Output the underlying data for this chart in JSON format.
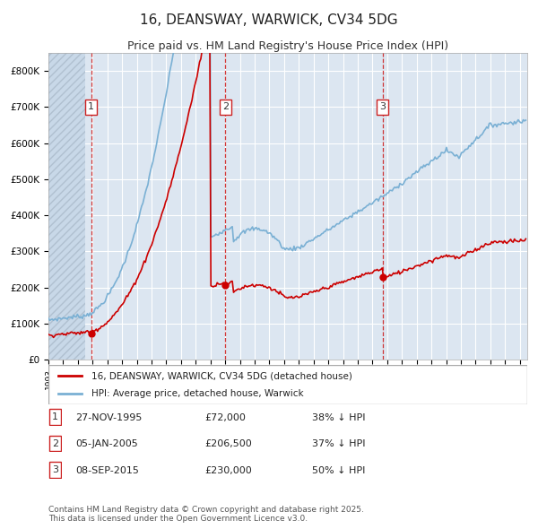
{
  "title": "16, DEANSWAY, WARWICK, CV34 5DG",
  "subtitle": "Price paid vs. HM Land Registry's House Price Index (HPI)",
  "ylabel": "",
  "background_color": "#dce6f1",
  "plot_bg_color": "#dce6f1",
  "hatch_color": "#c0cfe0",
  "grid_color": "#ffffff",
  "hpi_color": "#7ab0d4",
  "price_color": "#cc0000",
  "marker_color": "#cc0000",
  "vline_color": "#cc2222",
  "purchases": [
    {
      "date_num": 1995.9,
      "price": 72000,
      "label": "1"
    },
    {
      "date_num": 2005.02,
      "price": 206500,
      "label": "2"
    },
    {
      "date_num": 2015.68,
      "price": 230000,
      "label": "3"
    }
  ],
  "legend_label_price": "16, DEANSWAY, WARWICK, CV34 5DG (detached house)",
  "legend_label_hpi": "HPI: Average price, detached house, Warwick",
  "table_rows": [
    {
      "num": "1",
      "date": "27-NOV-1995",
      "price": "£72,000",
      "pct": "38% ↓ HPI"
    },
    {
      "num": "2",
      "date": "05-JAN-2005",
      "price": "£206,500",
      "pct": "37% ↓ HPI"
    },
    {
      "num": "3",
      "date": "08-SEP-2015",
      "price": "£230,000",
      "pct": "50% ↓ HPI"
    }
  ],
  "footnote": "Contains HM Land Registry data © Crown copyright and database right 2025.\nThis data is licensed under the Open Government Licence v3.0.",
  "xmin": 1993.0,
  "xmax": 2025.5,
  "ymin": 0,
  "ymax": 850000,
  "yticks": [
    0,
    100000,
    200000,
    300000,
    400000,
    500000,
    600000,
    700000,
    800000
  ],
  "ytick_labels": [
    "£0",
    "£100K",
    "£200K",
    "£300K",
    "£400K",
    "£500K",
    "£600K",
    "£700K",
    "£800K"
  ]
}
